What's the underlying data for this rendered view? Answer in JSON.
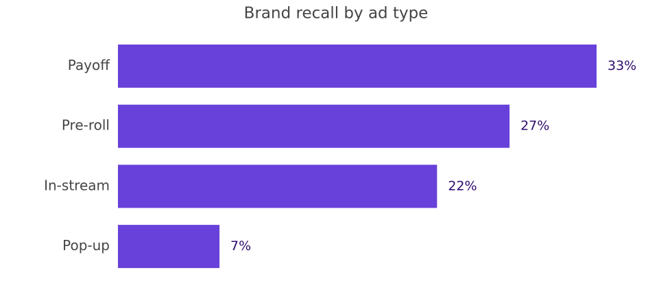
{
  "chart_data": {
    "type": "bar",
    "orientation": "horizontal",
    "title": "Brand recall by ad type",
    "categories": [
      "Payoff",
      "Pre-roll",
      "In-stream",
      "Pop-up"
    ],
    "values": [
      33,
      27,
      22,
      7
    ],
    "value_labels": [
      "33%",
      "27%",
      "22%",
      "7%"
    ],
    "color": "#6741d9"
  }
}
